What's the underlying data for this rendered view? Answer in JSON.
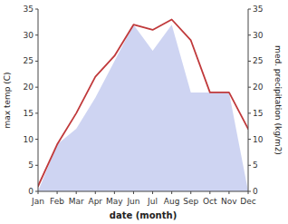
{
  "chart_data": {
    "type": "line",
    "xlabel": "date (month)",
    "ylabel": "max temp (C)",
    "y2label": "med. precipitation (kg/m2)",
    "categories": [
      "Jan",
      "Feb",
      "Mar",
      "Apr",
      "May",
      "Jun",
      "Jul",
      "Aug",
      "Sep",
      "Oct",
      "Nov",
      "Dec"
    ],
    "series": [
      {
        "type": "area",
        "axis": "y2",
        "color": "#c5cdf0",
        "values": [
          0,
          9,
          12,
          18,
          25,
          32,
          27,
          32,
          19,
          19,
          19,
          0
        ]
      },
      {
        "type": "line",
        "color": "#c0393b",
        "values": [
          1,
          9,
          15,
          22,
          26,
          32,
          31,
          33,
          29,
          19,
          19,
          12
        ]
      }
    ],
    "ylim": [
      0,
      35
    ],
    "yticks": [
      0,
      5,
      10,
      15,
      20,
      25,
      30,
      35
    ],
    "y2lim": [
      0,
      35
    ],
    "y2ticks": [
      0,
      5,
      10,
      15,
      20,
      25,
      30,
      35
    ],
    "grid": false
  }
}
